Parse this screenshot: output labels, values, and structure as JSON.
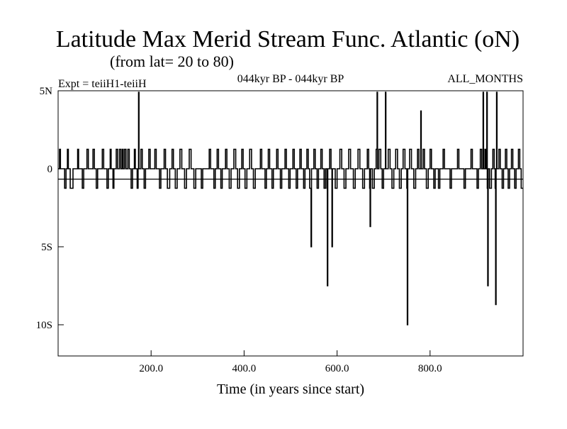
{
  "chart_data": {
    "type": "line",
    "title": "Latitude Max Merid Stream Func. Atlantic (oN)",
    "subtitle": "(from lat= 20 to 80)",
    "experiment": "Expt = teiiH1-teiiH",
    "period": "044kyr BP - 044kyr BP",
    "months": "ALL_MONTHS",
    "xlabel": "Time (in years since start)",
    "ylabel": "",
    "xlim": [
      0,
      1000
    ],
    "ylim": [
      -12,
      5
    ],
    "x_ticks": [
      {
        "value": 200,
        "label": "200.0"
      },
      {
        "value": 400,
        "label": "400.0"
      },
      {
        "value": 600,
        "label": "600.0"
      },
      {
        "value": 800,
        "label": "800.0"
      }
    ],
    "y_ticks": [
      {
        "value": 5,
        "label": "5N"
      },
      {
        "value": 0,
        "label": "0"
      },
      {
        "value": -5,
        "label": "5S"
      },
      {
        "value": -10,
        "label": "10S"
      }
    ],
    "grid": false,
    "series": [
      {
        "values": [
          [
            0,
            0
          ],
          [
            3,
            1.25
          ],
          [
            5,
            0
          ],
          [
            12,
            0
          ],
          [
            14,
            -1.25
          ],
          [
            17,
            0
          ],
          [
            20,
            1.25
          ],
          [
            22,
            0
          ],
          [
            26,
            -1.25
          ],
          [
            30,
            -1.25
          ],
          [
            32,
            0
          ],
          [
            40,
            0
          ],
          [
            42,
            1.25
          ],
          [
            44,
            0
          ],
          [
            50,
            0
          ],
          [
            52,
            -1.25
          ],
          [
            55,
            0
          ],
          [
            62,
            1.25
          ],
          [
            65,
            0
          ],
          [
            72,
            0
          ],
          [
            75,
            1.25
          ],
          [
            78,
            0
          ],
          [
            82,
            -1.25
          ],
          [
            85,
            0
          ],
          [
            92,
            0
          ],
          [
            95,
            1.25
          ],
          [
            98,
            0
          ],
          [
            105,
            -1.25
          ],
          [
            108,
            0
          ],
          [
            112,
            1.25
          ],
          [
            114,
            0
          ],
          [
            118,
            -1.25
          ],
          [
            120,
            0
          ],
          [
            125,
            1.25
          ],
          [
            128,
            0
          ],
          [
            132,
            1.25
          ],
          [
            135,
            0
          ],
          [
            138,
            1.25
          ],
          [
            140,
            0
          ],
          [
            143,
            1.25
          ],
          [
            146,
            0
          ],
          [
            150,
            1.25
          ],
          [
            153,
            0
          ],
          [
            157,
            -1.25
          ],
          [
            160,
            0
          ],
          [
            164,
            1.25
          ],
          [
            166,
            0
          ],
          [
            170,
            -1.25
          ],
          [
            172,
            0
          ],
          [
            173,
            4.9
          ],
          [
            174,
            0
          ],
          [
            178,
            1.25
          ],
          [
            181,
            0
          ],
          [
            185,
            -1.25
          ],
          [
            188,
            0
          ],
          [
            195,
            1.25
          ],
          [
            198,
            0
          ],
          [
            205,
            0
          ],
          [
            208,
            1.25
          ],
          [
            211,
            0
          ],
          [
            218,
            -1.25
          ],
          [
            221,
            0
          ],
          [
            228,
            1.25
          ],
          [
            231,
            0
          ],
          [
            235,
            -1.25
          ],
          [
            240,
            0
          ],
          [
            245,
            1.25
          ],
          [
            248,
            0
          ],
          [
            252,
            -1.25
          ],
          [
            256,
            0
          ],
          [
            262,
            1.25
          ],
          [
            266,
            0
          ],
          [
            272,
            -1.25
          ],
          [
            276,
            0
          ],
          [
            282,
            1.25
          ],
          [
            286,
            0
          ],
          [
            292,
            -1.25
          ],
          [
            296,
            0
          ],
          [
            305,
            0
          ],
          [
            308,
            -1.25
          ],
          [
            311,
            0
          ],
          [
            322,
            0
          ],
          [
            325,
            1.25
          ],
          [
            328,
            0
          ],
          [
            335,
            -1.25
          ],
          [
            338,
            0
          ],
          [
            342,
            1.25
          ],
          [
            345,
            0
          ],
          [
            350,
            -1.25
          ],
          [
            353,
            0
          ],
          [
            360,
            1.25
          ],
          [
            363,
            0
          ],
          [
            368,
            -1.25
          ],
          [
            372,
            0
          ],
          [
            378,
            1.25
          ],
          [
            382,
            0
          ],
          [
            386,
            -1.25
          ],
          [
            390,
            0
          ],
          [
            395,
            1.25
          ],
          [
            398,
            0
          ],
          [
            402,
            -1.25
          ],
          [
            406,
            0
          ],
          [
            412,
            1.25
          ],
          [
            416,
            0
          ],
          [
            420,
            -1.25
          ],
          [
            424,
            0
          ],
          [
            432,
            0
          ],
          [
            435,
            1.25
          ],
          [
            438,
            0
          ],
          [
            445,
            -1.25
          ],
          [
            448,
            0
          ],
          [
            452,
            1.25
          ],
          [
            455,
            0
          ],
          [
            460,
            -1.25
          ],
          [
            463,
            0
          ],
          [
            470,
            1.25
          ],
          [
            473,
            0
          ],
          [
            478,
            -1.25
          ],
          [
            481,
            0
          ],
          [
            488,
            1.25
          ],
          [
            491,
            0
          ],
          [
            496,
            -1.25
          ],
          [
            499,
            0
          ],
          [
            505,
            1.25
          ],
          [
            508,
            0
          ],
          [
            512,
            -1.25
          ],
          [
            515,
            0
          ],
          [
            520,
            1.25
          ],
          [
            523,
            0
          ],
          [
            528,
            -1.25
          ],
          [
            531,
            0
          ],
          [
            535,
            1.25
          ],
          [
            538,
            0
          ],
          [
            541,
            -1.25
          ],
          [
            543,
            -1.25
          ],
          [
            544,
            -5.0
          ],
          [
            545,
            0
          ],
          [
            550,
            1.25
          ],
          [
            553,
            0
          ],
          [
            557,
            -1.25
          ],
          [
            560,
            0
          ],
          [
            565,
            1.25
          ],
          [
            568,
            0
          ],
          [
            572,
            -1.25
          ],
          [
            575,
            0
          ],
          [
            578,
            -1.25
          ],
          [
            579,
            -7.5
          ],
          [
            580,
            0
          ],
          [
            584,
            1.25
          ],
          [
            587,
            0
          ],
          [
            589,
            -5.0
          ],
          [
            590,
            0
          ],
          [
            596,
            -1.25
          ],
          [
            600,
            0
          ],
          [
            606,
            1.25
          ],
          [
            610,
            0
          ],
          [
            615,
            -1.25
          ],
          [
            619,
            0
          ],
          [
            625,
            1.25
          ],
          [
            629,
            0
          ],
          [
            635,
            -1.25
          ],
          [
            639,
            0
          ],
          [
            645,
            1.25
          ],
          [
            649,
            0
          ],
          [
            655,
            -1.25
          ],
          [
            659,
            0
          ],
          [
            665,
            1.25
          ],
          [
            668,
            0
          ],
          [
            670,
            -1.25
          ],
          [
            671,
            -3.7
          ],
          [
            672,
            0
          ],
          [
            676,
            -1.25
          ],
          [
            680,
            0
          ],
          [
            684,
            1.25
          ],
          [
            686,
            4.9
          ],
          [
            687,
            0
          ],
          [
            690,
            1.25
          ],
          [
            694,
            0
          ],
          [
            697,
            -1.25
          ],
          [
            700,
            0
          ],
          [
            704,
            4.9
          ],
          [
            705,
            0
          ],
          [
            710,
            1.25
          ],
          [
            714,
            0
          ],
          [
            718,
            -1.25
          ],
          [
            722,
            0
          ],
          [
            726,
            1.25
          ],
          [
            730,
            0
          ],
          [
            734,
            -1.25
          ],
          [
            738,
            0
          ],
          [
            742,
            1.25
          ],
          [
            746,
            0
          ],
          [
            750,
            -1.25
          ],
          [
            751,
            -10.0
          ],
          [
            752,
            0
          ],
          [
            756,
            1.25
          ],
          [
            760,
            0
          ],
          [
            765,
            -1.25
          ],
          [
            769,
            0
          ],
          [
            773,
            1.25
          ],
          [
            776,
            0
          ],
          [
            780,
            3.7
          ],
          [
            781,
            0
          ],
          [
            785,
            1.25
          ],
          [
            788,
            0
          ],
          [
            792,
            -1.25
          ],
          [
            796,
            0
          ],
          [
            800,
            1.25
          ],
          [
            803,
            0
          ],
          [
            808,
            -1.25
          ],
          [
            811,
            0
          ],
          [
            818,
            -1.25
          ],
          [
            821,
            0
          ],
          [
            828,
            1.25
          ],
          [
            831,
            0
          ],
          [
            840,
            0
          ],
          [
            843,
            -1.25
          ],
          [
            846,
            0
          ],
          [
            856,
            0
          ],
          [
            859,
            1.25
          ],
          [
            862,
            0
          ],
          [
            870,
            0
          ],
          [
            873,
            -1.25
          ],
          [
            876,
            0
          ],
          [
            885,
            0
          ],
          [
            888,
            1.25
          ],
          [
            891,
            0
          ],
          [
            898,
            0
          ],
          [
            901,
            -1.25
          ],
          [
            904,
            0
          ],
          [
            908,
            1.25
          ],
          [
            911,
            0
          ],
          [
            914,
            4.9
          ],
          [
            915,
            0
          ],
          [
            918,
            1.25
          ],
          [
            920,
            0
          ],
          [
            922,
            4.9
          ],
          [
            923,
            -1.25
          ],
          [
            924,
            -7.5
          ],
          [
            925,
            0
          ],
          [
            928,
            -1.25
          ],
          [
            932,
            0
          ],
          [
            935,
            1.25
          ],
          [
            938,
            0
          ],
          [
            940,
            -1.25
          ],
          [
            941,
            -8.7
          ],
          [
            942,
            0
          ],
          [
            943,
            4.9
          ],
          [
            944,
            0
          ],
          [
            948,
            1.25
          ],
          [
            951,
            0
          ],
          [
            955,
            -1.25
          ],
          [
            958,
            0
          ],
          [
            962,
            1.25
          ],
          [
            965,
            0
          ],
          [
            968,
            -1.25
          ],
          [
            971,
            0
          ],
          [
            975,
            1.25
          ],
          [
            978,
            0
          ],
          [
            982,
            -1.25
          ],
          [
            985,
            0
          ],
          [
            990,
            1.25
          ],
          [
            993,
            0
          ],
          [
            996,
            -1.25
          ],
          [
            1000,
            -1.25
          ]
        ]
      }
    ]
  }
}
